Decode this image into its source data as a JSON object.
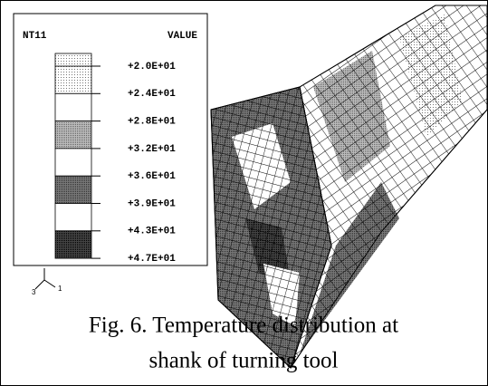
{
  "legend": {
    "title": "NT11",
    "heading": "VALUE",
    "labels": [
      "+2.0E+01",
      "+2.4E+01",
      "+2.8E+01",
      "+3.2E+01",
      "+3.6E+01",
      "+3.9E+01",
      "+4.3E+01",
      "+4.7E+01"
    ]
  },
  "triad": {
    "labels": [
      "3",
      "1"
    ]
  },
  "caption": {
    "lines": [
      "Fig. 6. Temperature distribution at",
      "shank of turning tool"
    ]
  }
}
